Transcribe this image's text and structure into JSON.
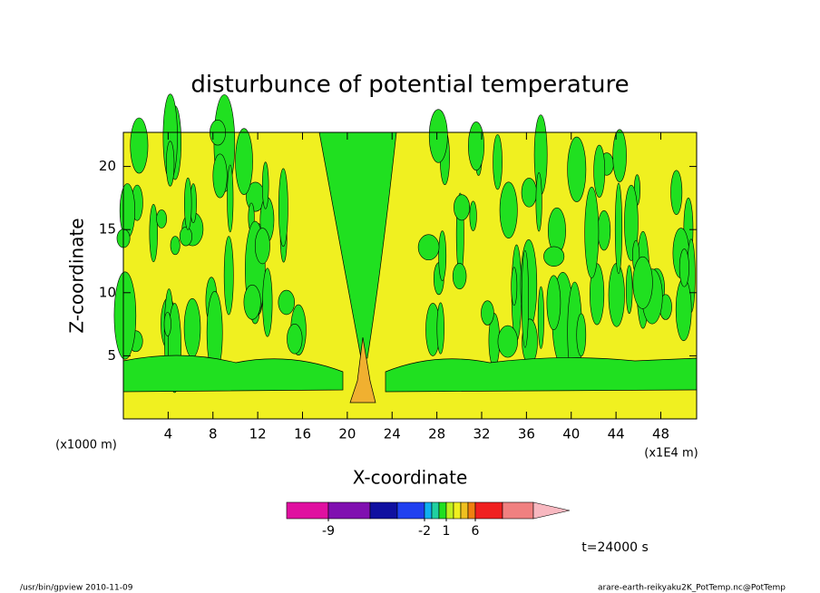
{
  "chart_data": {
    "type": "contour",
    "title": "disturbunce of potential temperature",
    "xlabel": "X-coordinate",
    "ylabel": "Z-coordinate",
    "xunit_labels": [
      "(x1000 m)",
      "(x1E4 m)"
    ],
    "xlim": [
      0,
      51.2
    ],
    "xticks": [
      4,
      8,
      12,
      16,
      20,
      24,
      28,
      32,
      36,
      40,
      44,
      48
    ],
    "ylim": [
      0,
      22.7
    ],
    "yticks": [
      5,
      10,
      15,
      20
    ],
    "field_colors": [
      "#f0f020",
      "#20e020",
      "#f0b030"
    ],
    "colorbar": {
      "levels": [
        -9,
        -6,
        -3,
        -2,
        -1,
        0,
        1,
        2,
        3,
        4,
        6,
        9
      ],
      "colors": [
        "#e010a0",
        "#8010b0",
        "#1010a0",
        "#2040f0",
        "#10b0f0",
        "#20d0a0",
        "#20e020",
        "#c0f020",
        "#f0f020",
        "#f0c020",
        "#f08010",
        "#f02020",
        "#f08080",
        "#f8b8c0"
      ],
      "ticks": [
        -9,
        -2,
        1,
        6
      ]
    },
    "time_label": "t=24000 s",
    "footer_left": "/usr/bin/gpview  2010-11-09",
    "footer_right": "arare-earth-reikyaku2K_PotTemp.nc@PotTemp"
  }
}
